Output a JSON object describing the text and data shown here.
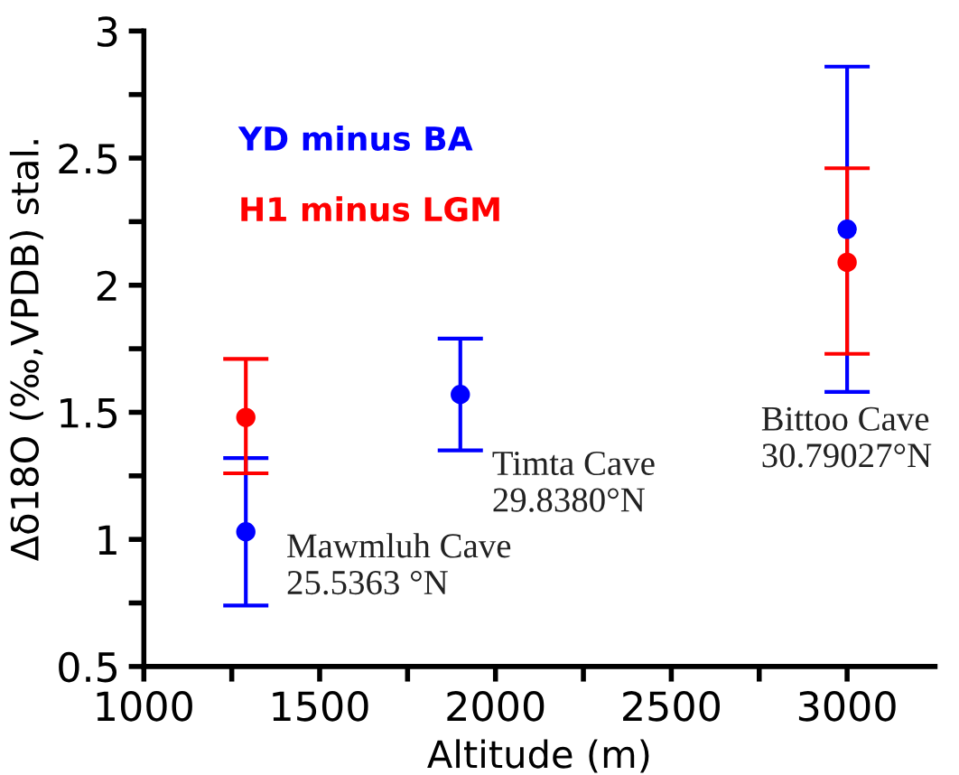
{
  "chart_data": {
    "type": "scatter",
    "xlabel": "Altitude (m)",
    "ylabel": "Δδ18O (‰,VPDB) stal.",
    "series": [
      {
        "name": "YD minus BA",
        "color": "#0000ff",
        "x": [
          1290,
          1900,
          3000
        ],
        "values": [
          1.03,
          1.57,
          2.22
        ],
        "errors": [
          [
            0.74,
            1.32
          ],
          [
            1.35,
            1.79
          ],
          [
            1.58,
            2.86
          ]
        ]
      },
      {
        "name": "H1 minus LGM",
        "color": "#ff0000",
        "x": [
          1290,
          3000
        ],
        "values": [
          1.48,
          2.09
        ],
        "errors": [
          [
            1.26,
            1.71
          ],
          [
            1.73,
            2.46
          ]
        ]
      }
    ],
    "annotations": [
      "Mawmluh Cave\n25.5363 °N",
      "Timta Cave\n29.8380°N",
      "Bittoo Cave\n30.79027°N"
    ],
    "xlim": [
      1000,
      3250
    ],
    "ylim": [
      0.5,
      3
    ],
    "xticks": [
      1000,
      {
        "value": 1250,
        "label": null
      },
      1500,
      {
        "value": 1750,
        "label": null
      },
      2000,
      {
        "value": 2250,
        "label": null
      },
      2500,
      {
        "value": 2750,
        "label": null
      },
      3000
    ],
    "yticks": [
      0.5,
      {
        "value": 0.75,
        "label": null
      },
      1,
      {
        "value": 1.25,
        "label": null
      },
      1.5,
      {
        "value": 1.75,
        "label": null
      },
      2,
      {
        "value": 2.25,
        "label": null
      },
      2.5,
      {
        "value": 2.75,
        "label": null
      },
      3
    ],
    "marker": "circle",
    "grid": false,
    "legend": "top left"
  }
}
